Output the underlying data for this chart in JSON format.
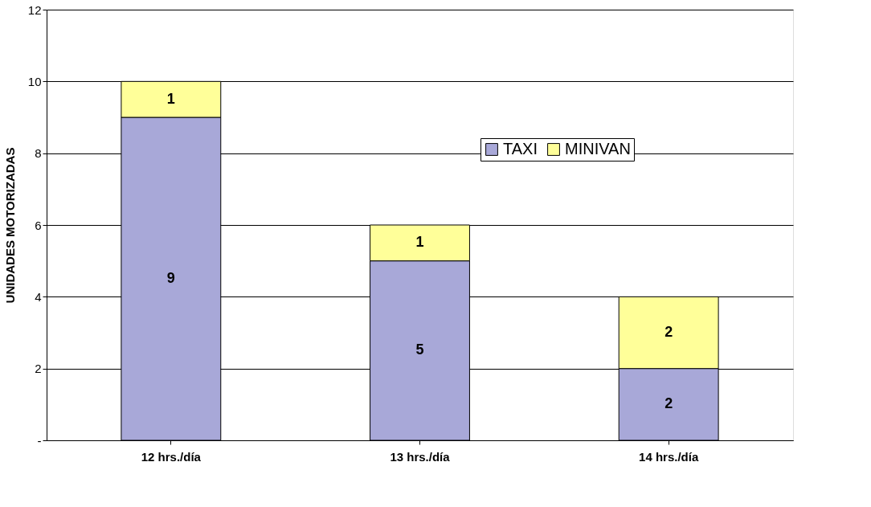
{
  "chart_data": {
    "type": "bar",
    "stacked": true,
    "ylabel": "UNIDADES MOTORIZADAS",
    "categories": [
      "12 hrs./día",
      "13 hrs./día",
      "14 hrs./día"
    ],
    "series": [
      {
        "name": "TAXI",
        "color": "#a8a8d8",
        "values": [
          9,
          5,
          2
        ]
      },
      {
        "name": "MINIVAN",
        "color": "#ffff99",
        "values": [
          1,
          1,
          2
        ]
      }
    ],
    "ylim": [
      0,
      12
    ],
    "yticks": [
      {
        "value": 0,
        "label": "-"
      },
      2,
      4,
      6,
      8,
      10,
      12
    ],
    "grid": "y",
    "legend": "top right",
    "data_labels": true
  }
}
